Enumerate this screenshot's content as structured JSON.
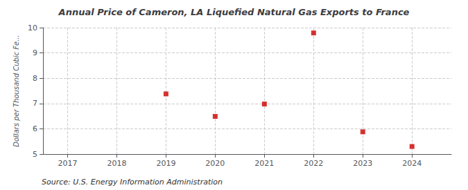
{
  "chart_data": {
    "type": "scatter",
    "title": "Annual Price of Cameron, LA Liquefied Natural Gas Exports to France",
    "ylabel": "Dollars per Thousand Cubic Fe...",
    "annotations": [
      "Source: U.S. Energy Information Administration"
    ],
    "x": [
      2019,
      2020,
      2021,
      2022,
      2023,
      2024
    ],
    "values": [
      7.38,
      6.49,
      6.98,
      9.79,
      5.88,
      5.3
    ],
    "color": "#cc0000",
    "marker": "square",
    "xlim": [
      2016.5,
      2024.8
    ],
    "xticks": [
      2017,
      2018,
      2019,
      2020,
      2021,
      2022,
      2023,
      2024
    ],
    "ylim": [
      5,
      10
    ],
    "yticks": [
      5,
      6,
      7,
      8,
      9,
      10
    ],
    "grid": true
  }
}
